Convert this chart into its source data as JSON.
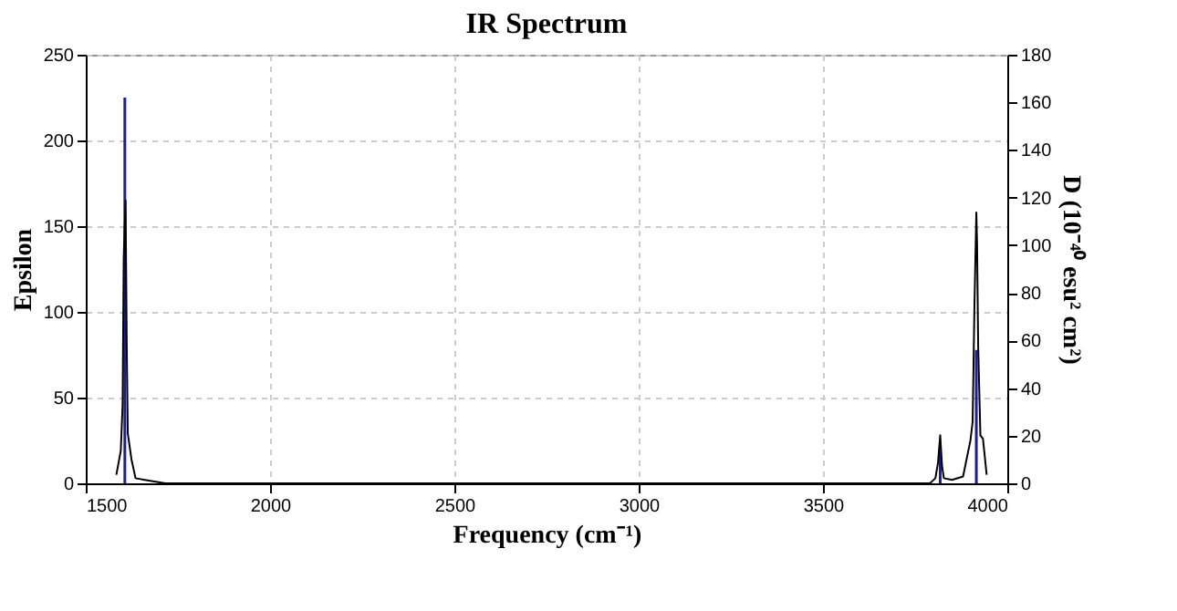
{
  "chart_data": {
    "type": "line",
    "title": "IR Spectrum",
    "xlabel": "Frequency (cm⁻¹)",
    "ylabel": "Epsilon",
    "y2label": "D (10⁻⁴⁰ esu² cm²)",
    "xlim": [
      1500,
      4000
    ],
    "xticks": [
      1500,
      2000,
      2500,
      3000,
      3500,
      4000
    ],
    "ylim": [
      0,
      250
    ],
    "yticks": [
      0,
      50,
      100,
      150,
      200,
      250
    ],
    "y2lim": [
      0,
      180
    ],
    "y2ticks": [
      0,
      20,
      40,
      60,
      80,
      100,
      120,
      140,
      160,
      180
    ],
    "grid": true,
    "line_style": "solid",
    "series": [
      {
        "color": "#000000",
        "x": [
          1583,
          1595,
          1600,
          1603,
          1608,
          1611,
          1614,
          1624,
          1635,
          1660,
          1716,
          2750,
          3790,
          3805,
          3812,
          3818,
          3823,
          3828,
          3850,
          3880,
          3900,
          3906,
          3911,
          3916,
          3918,
          3921,
          3927,
          3934,
          3944
        ],
        "values": [
          5,
          19,
          46,
          132,
          165,
          84,
          29,
          14,
          3,
          2,
          0,
          0,
          0,
          3,
          12,
          28,
          10,
          3,
          2,
          4,
          25,
          36,
          105,
          158,
          140,
          80,
          28,
          26,
          5
        ]
      },
      {
        "type": "bar",
        "axis": "y2",
        "color": "#1c1c9c",
        "x": [
          1606,
          3818,
          3916
        ],
        "values": [
          162,
          14,
          56
        ]
      }
    ]
  }
}
